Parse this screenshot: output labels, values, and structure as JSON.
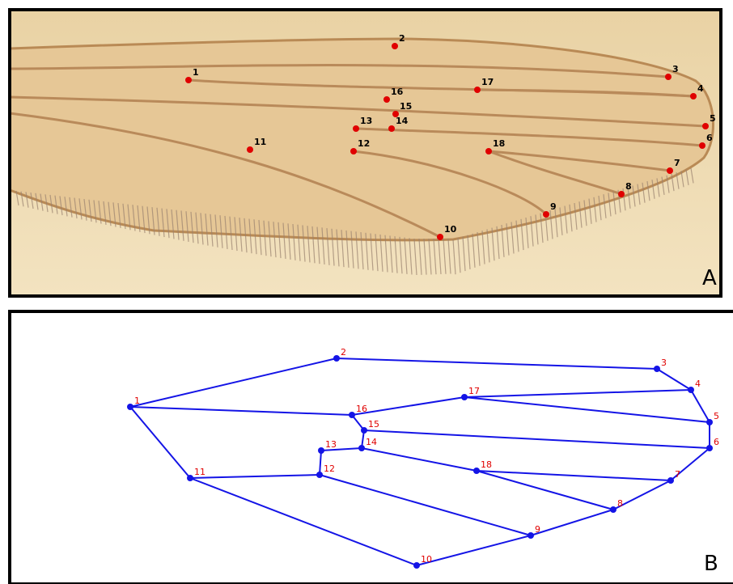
{
  "panels": [
    {
      "label": "A",
      "landmarks": [
        "1",
        "2",
        "3",
        "4",
        "5",
        "6",
        "7",
        "8",
        "9",
        "10",
        "11",
        "12",
        "13",
        "14",
        "15",
        "16",
        "17",
        "18"
      ]
    },
    {
      "label": "B",
      "landmarks": [
        "1",
        "2",
        "3",
        "4",
        "5",
        "6",
        "7",
        "8",
        "9",
        "10",
        "11",
        "12",
        "13",
        "14",
        "15",
        "16",
        "17",
        "18"
      ]
    }
  ]
}
